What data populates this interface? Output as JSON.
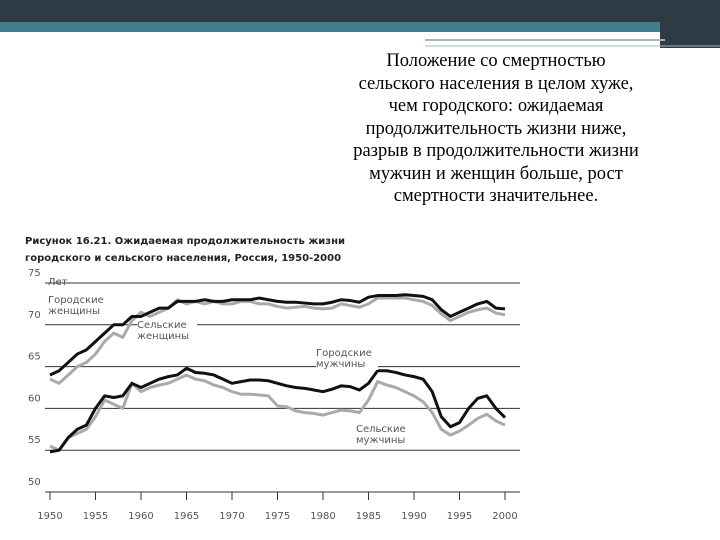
{
  "slide": {
    "text": "Положение со смертностью сельского населения в целом хуже, чем городского: ожидаемая продолжительность жизни ниже, разрыв в продолжительности жизни мужчин и женщин больше, рост смертности значительнее."
  },
  "chart_data": {
    "type": "line",
    "title": [
      "Рисунок 16.21. Ожидаемая продолжительность жизни",
      "городского и сельского населения, Россия, 1950-2000"
    ],
    "y_label": "Лет",
    "x": [
      1950,
      1951,
      1952,
      1953,
      1954,
      1955,
      1956,
      1957,
      1958,
      1959,
      1960,
      1961,
      1962,
      1963,
      1964,
      1965,
      1966,
      1967,
      1968,
      1969,
      1970,
      1971,
      1972,
      1973,
      1974,
      1975,
      1976,
      1977,
      1978,
      1979,
      1980,
      1981,
      1982,
      1983,
      1984,
      1985,
      1986,
      1987,
      1988,
      1989,
      1990,
      1991,
      1992,
      1993,
      1994,
      1995,
      1996,
      1997,
      1998,
      1999,
      2000
    ],
    "series": [
      {
        "name": "Городские женщины",
        "color": "#111111",
        "values": [
          64,
          64.5,
          65.5,
          66.5,
          67,
          68,
          69,
          70,
          70,
          71,
          71,
          71.5,
          72,
          72,
          72.8,
          72.8,
          72.8,
          73,
          72.8,
          72.8,
          73,
          73,
          73,
          73.2,
          73,
          72.8,
          72.7,
          72.7,
          72.6,
          72.5,
          72.5,
          72.7,
          73,
          72.9,
          72.7,
          73.3,
          73.5,
          73.5,
          73.5,
          73.6,
          73.5,
          73.4,
          73,
          71.8,
          71,
          71.5,
          72,
          72.5,
          72.8,
          72,
          71.9
        ]
      },
      {
        "name": "Сельские женщины",
        "color": "#aaaaaa",
        "values": [
          63.5,
          63,
          64,
          65,
          65.5,
          66.5,
          68,
          69,
          68.5,
          70.5,
          71.5,
          71,
          71.5,
          72,
          73,
          72.5,
          72.8,
          72.5,
          72.8,
          72.5,
          72.5,
          72.8,
          72.8,
          72.5,
          72.5,
          72.2,
          72,
          72.1,
          72.2,
          72,
          71.9,
          72,
          72.5,
          72.3,
          72.1,
          72.5,
          73.2,
          73.2,
          73.2,
          73.2,
          73,
          72.8,
          72.3,
          71.3,
          70.5,
          71,
          71.5,
          71.8,
          72,
          71.4,
          71.2
        ]
      },
      {
        "name": "Городские мужчины",
        "color": "#111111",
        "values": [
          54.8,
          55,
          56.5,
          57.5,
          58,
          60,
          61.5,
          61.3,
          61.5,
          63,
          62.5,
          63,
          63.5,
          63.8,
          64,
          64.8,
          64.3,
          64.2,
          64,
          63.5,
          63,
          63.2,
          63.4,
          63.4,
          63.3,
          63,
          62.7,
          62.5,
          62.4,
          62.2,
          62,
          62.3,
          62.7,
          62.6,
          62.2,
          63,
          64.5,
          64.5,
          64.3,
          64,
          63.8,
          63.5,
          62,
          59,
          57.8,
          58.3,
          60,
          61.2,
          61.5,
          60,
          58.9
        ]
      },
      {
        "name": "Сельские мужчины",
        "color": "#aaaaaa",
        "values": [
          55.5,
          55,
          56.5,
          57,
          57.5,
          59,
          61,
          60.5,
          60,
          63,
          62,
          62.5,
          62.8,
          63,
          63.5,
          64,
          63.5,
          63.3,
          62.8,
          62.5,
          62,
          61.7,
          61.7,
          61.6,
          61.5,
          60.3,
          60.2,
          59.7,
          59.5,
          59.4,
          59.2,
          59.5,
          59.8,
          59.7,
          59.5,
          61,
          63.2,
          62.8,
          62.5,
          62,
          61.5,
          60.8,
          59.5,
          57.5,
          56.8,
          57.3,
          58,
          58.8,
          59.3,
          58.5,
          58
        ]
      }
    ],
    "xlim": [
      1950,
      2000
    ],
    "xticks": [
      1950,
      1955,
      1960,
      1965,
      1970,
      1975,
      1980,
      1985,
      1990,
      1995,
      2000
    ],
    "ylim": [
      50,
      75
    ],
    "yticks": [
      50,
      55,
      60,
      65,
      70,
      75
    ],
    "grid": true
  }
}
